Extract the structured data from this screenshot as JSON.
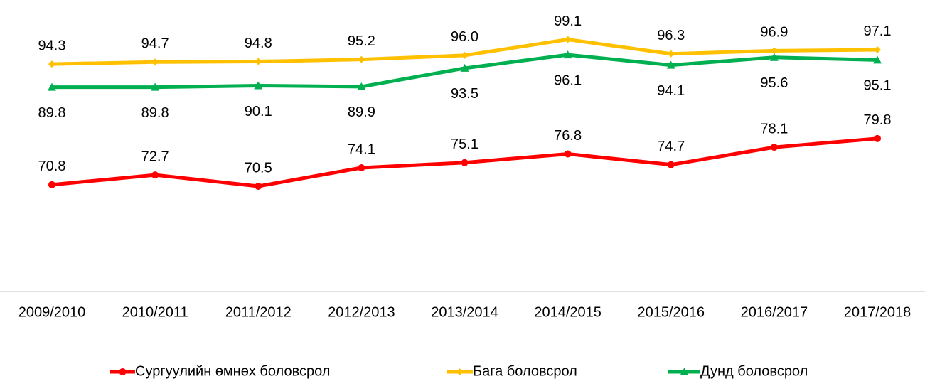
{
  "chart_data": {
    "type": "line",
    "categories": [
      "2009/2010",
      "2010/2011",
      "2011/2012",
      "2012/2013",
      "2013/2014",
      "2014/2015",
      "2015/2016",
      "2016/2017",
      "2017/2018"
    ],
    "ylim": [
      50,
      100
    ],
    "series": [
      {
        "name": "Сургуулийн өмнөх боловсрол",
        "color": "#ff0000",
        "marker": "circle",
        "values": [
          70.8,
          72.7,
          70.5,
          74.1,
          75.1,
          76.8,
          74.7,
          78.1,
          79.8
        ],
        "value_labels": [
          "70.8",
          "72.7",
          "70.5",
          "74.1",
          "75.1",
          "76.8",
          "74.7",
          "78.1",
          "79.8"
        ]
      },
      {
        "name": "Бага боловсрол",
        "color": "#ffc000",
        "marker": "diamond",
        "values": [
          94.3,
          94.7,
          94.8,
          95.2,
          96.0,
          99.1,
          96.3,
          96.9,
          97.1
        ],
        "value_labels": [
          "94.3",
          "94.7",
          "94.8",
          "95.2",
          "96.0",
          "99.1",
          "96.3",
          "96.9",
          "97.1"
        ]
      },
      {
        "name": "Дунд боловсрол",
        "color": "#00b050",
        "marker": "triangle",
        "values": [
          89.8,
          89.8,
          90.1,
          89.9,
          93.5,
          96.1,
          94.1,
          95.6,
          95.1
        ],
        "value_labels": [
          "89.8",
          "89.8",
          "90.1",
          "89.9",
          "93.5",
          "96.1",
          "94.1",
          "95.6",
          "95.1"
        ]
      }
    ]
  }
}
